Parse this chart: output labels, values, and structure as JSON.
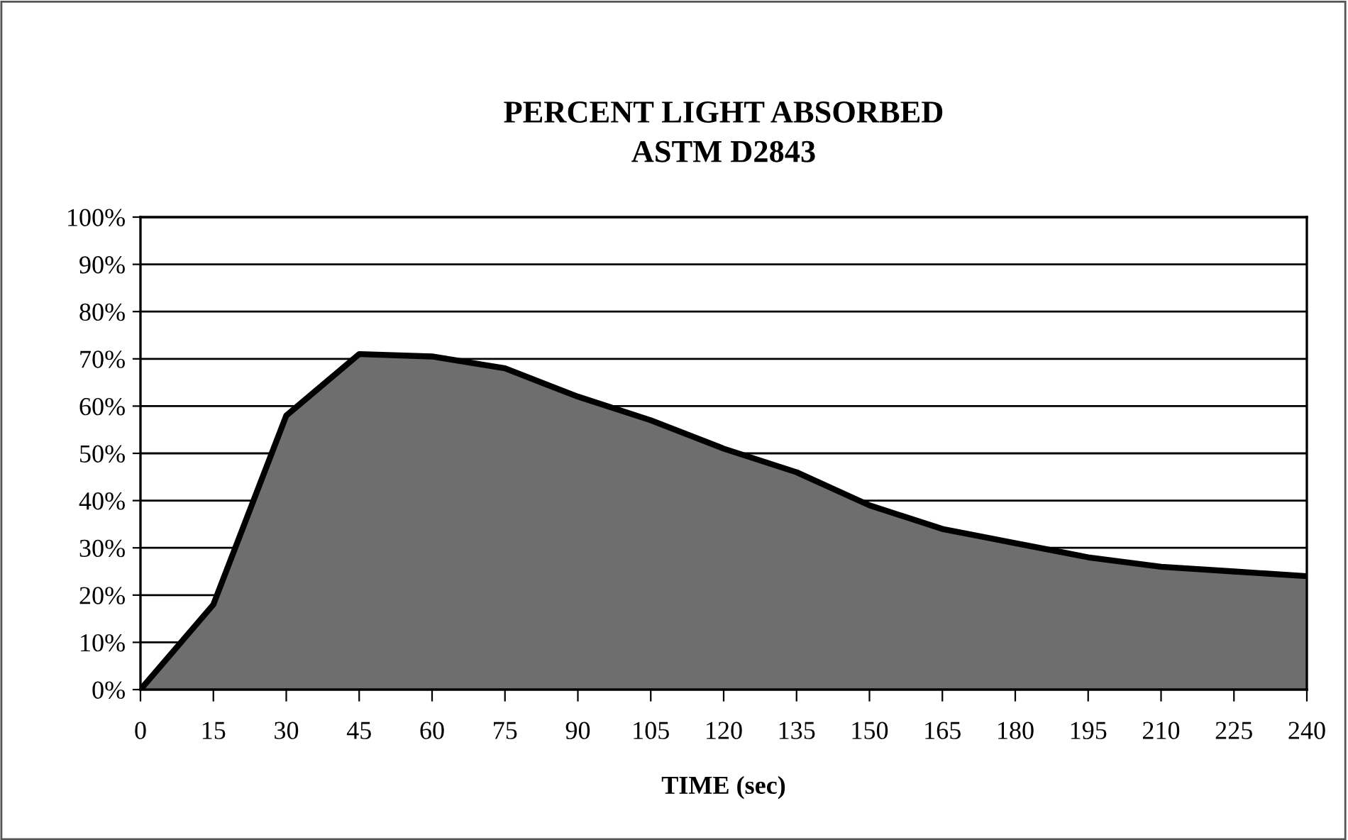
{
  "chart_data": {
    "type": "area",
    "title": "PERCENT LIGHT ABSORBED\nASTM D2843",
    "xlabel": "TIME (sec)",
    "x": [
      0,
      15,
      30,
      45,
      60,
      75,
      90,
      105,
      120,
      135,
      150,
      165,
      180,
      195,
      210,
      225,
      240
    ],
    "series": [
      {
        "color": "#6e6e6e",
        "values": [
          0,
          18,
          58,
          71,
          70.5,
          68,
          62,
          57,
          51,
          46,
          39,
          34,
          31,
          28,
          26,
          25,
          24
        ]
      }
    ],
    "xlim": [
      0,
      240
    ],
    "xticks": [
      0,
      15,
      30,
      45,
      60,
      75,
      90,
      105,
      120,
      135,
      150,
      165,
      180,
      195,
      210,
      225,
      240
    ],
    "ylim": [
      0,
      100
    ],
    "yticks": [
      {
        "value": 0,
        "label": "0%"
      },
      {
        "value": 10,
        "label": "10%"
      },
      {
        "value": 20,
        "label": "20%"
      },
      {
        "value": 30,
        "label": "30%"
      },
      {
        "value": 40,
        "label": "40%"
      },
      {
        "value": 50,
        "label": "50%"
      },
      {
        "value": 60,
        "label": "60%"
      },
      {
        "value": 70,
        "label": "70%"
      },
      {
        "value": 80,
        "label": "80%"
      },
      {
        "value": 90,
        "label": "90%"
      },
      {
        "value": 100,
        "label": "100%"
      }
    ],
    "grid": "y",
    "legend": false
  }
}
